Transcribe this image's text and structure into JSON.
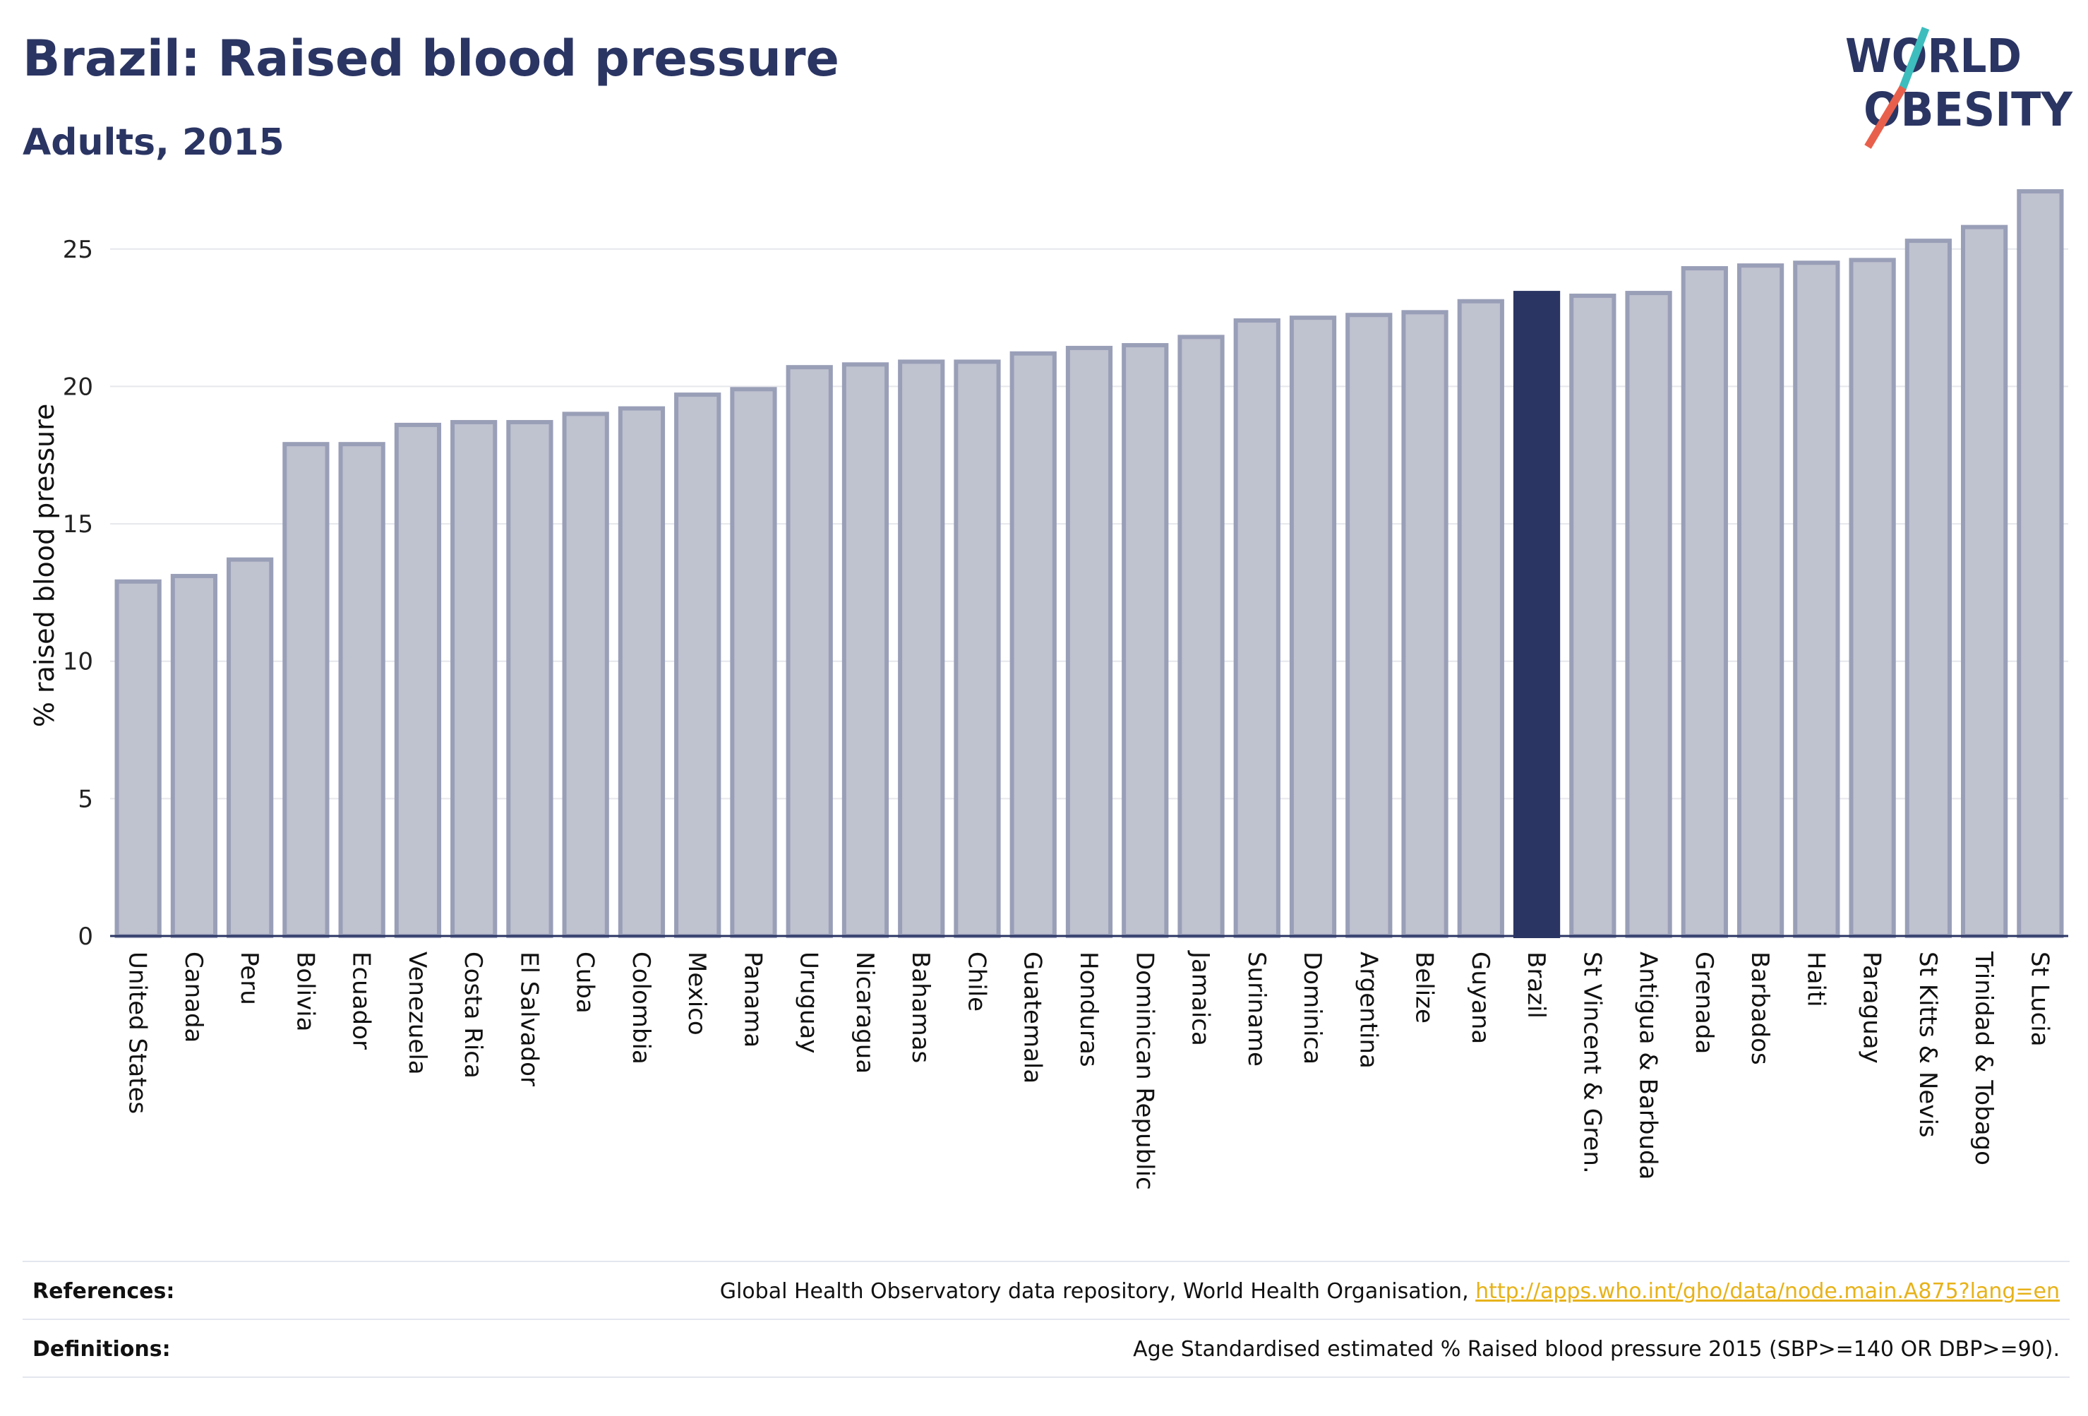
{
  "header": {
    "title": "Brazil: Raised blood pressure",
    "subtitle": "Adults, 2015"
  },
  "logo": {
    "line1": "WORLD",
    "line2": "OBESITY",
    "colors": {
      "text": "#2b3563",
      "slash_teal": "#3dbdbd",
      "slash_red": "#e8604c"
    }
  },
  "colors": {
    "bar_fill": "#bfc2cf",
    "bar_stroke": "#9a9fb8",
    "highlight": "#2b3563",
    "grid": "#e6e7ec",
    "axis": "#2b3563"
  },
  "chart_data": {
    "type": "bar",
    "ylabel": "% raised blood pressure",
    "ylim": [
      0,
      28
    ],
    "yticks": [
      0,
      5,
      10,
      15,
      20,
      25
    ],
    "grid": true,
    "highlight": "Brazil",
    "categories": [
      "United States",
      "Canada",
      "Peru",
      "Bolivia",
      "Ecuador",
      "Venezuela",
      "Costa Rica",
      "El Salvador",
      "Cuba",
      "Colombia",
      "Mexico",
      "Panama",
      "Uruguay",
      "Nicaragua",
      "Bahamas",
      "Chile",
      "Guatemala",
      "Honduras",
      "Dominican Republic",
      "Jamaica",
      "Suriname",
      "Dominica",
      "Argentina",
      "Belize",
      "Guyana",
      "Brazil",
      "St Vincent & Gren.",
      "Antigua & Barbuda",
      "Grenada",
      "Barbados",
      "Haiti",
      "Paraguay",
      "St Kitts & Nevis",
      "Trinidad & Tobago",
      "St Lucia"
    ],
    "values": [
      12.9,
      13.1,
      13.7,
      17.9,
      17.9,
      18.6,
      18.7,
      18.7,
      19.0,
      19.2,
      19.7,
      19.9,
      20.7,
      20.8,
      20.9,
      20.9,
      21.2,
      21.4,
      21.5,
      21.8,
      22.4,
      22.5,
      22.6,
      22.7,
      23.1,
      23.4,
      23.3,
      23.4,
      24.3,
      24.4,
      24.5,
      24.6,
      25.3,
      25.8,
      27.1
    ]
  },
  "footer": {
    "references_label": "References:",
    "references_text": "Global Health Observatory data repository, World Health Organisation, ",
    "references_link": "http://apps.who.int/gho/data/node.main.A875?lang=en",
    "definitions_label": "Definitions:",
    "definitions_text": "Age Standardised estimated % Raised blood pressure 2015 (SBP>=140 OR DBP>=90)."
  }
}
